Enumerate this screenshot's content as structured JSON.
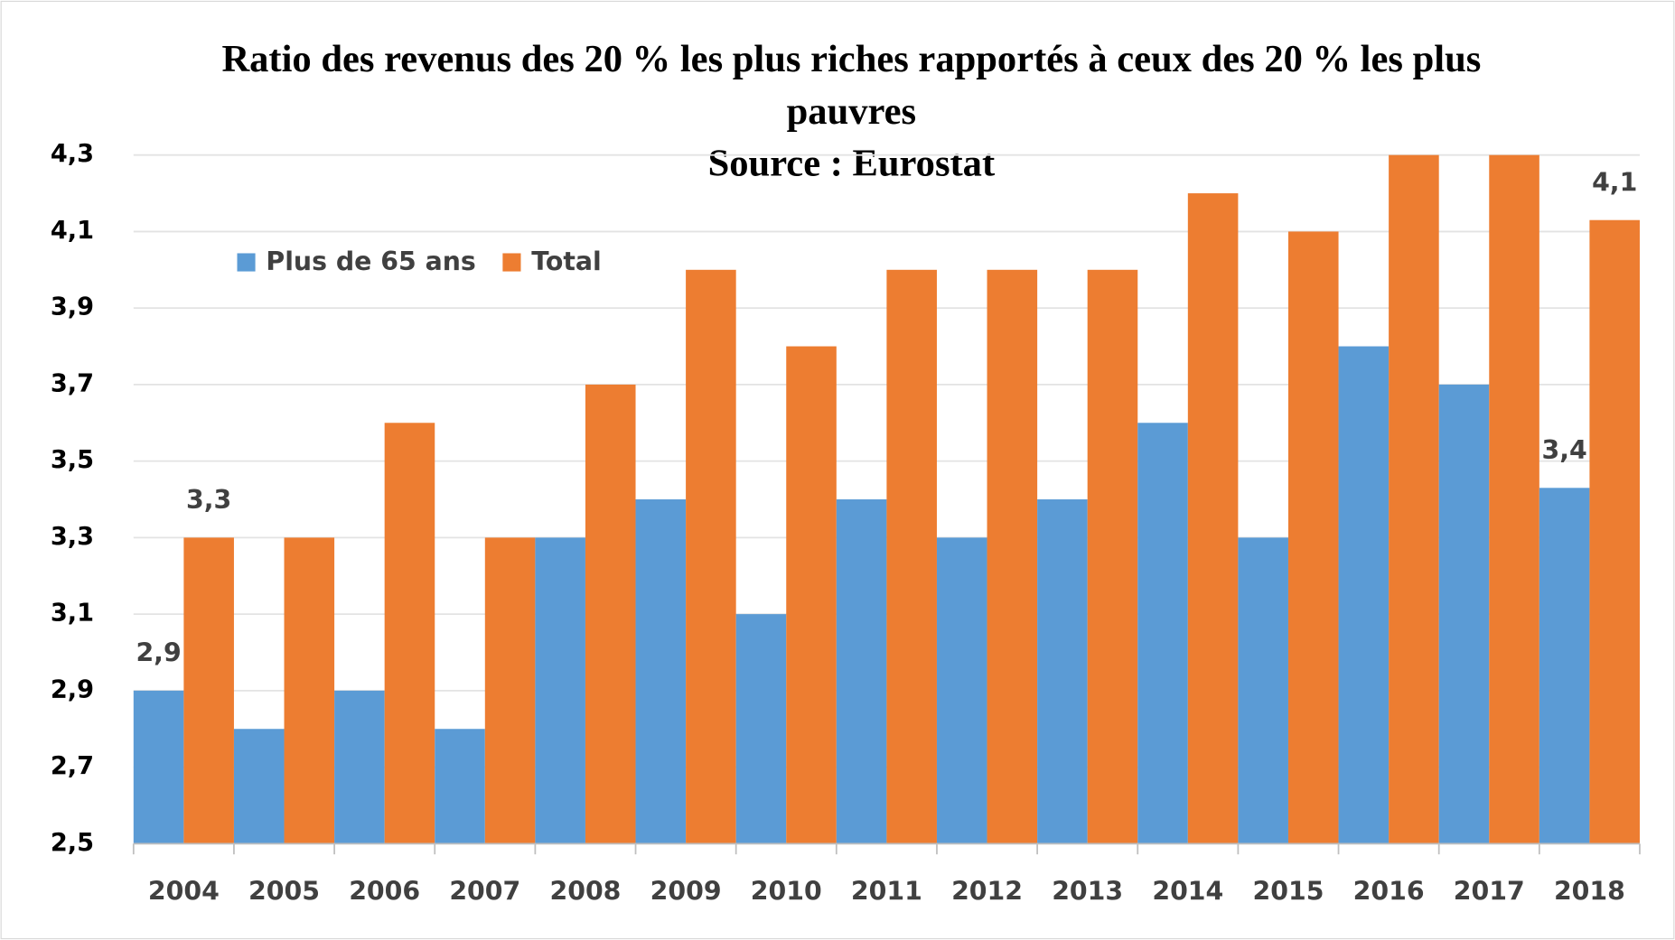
{
  "chart_data": {
    "type": "bar",
    "title": "Ratio des revenus des 20 % les plus riches rapportés à ceux des 20 % les plus pauvres",
    "subtitle": "Source : Eurostat",
    "categories": [
      "2004",
      "2005",
      "2006",
      "2007",
      "2008",
      "2009",
      "2010",
      "2011",
      "2012",
      "2013",
      "2014",
      "2015",
      "2016",
      "2017",
      "2018"
    ],
    "series": [
      {
        "name": "Plus de 65 ans",
        "color": "#5b9bd5",
        "values": [
          2.9,
          2.8,
          2.9,
          2.8,
          3.3,
          3.4,
          3.1,
          3.4,
          3.3,
          3.4,
          3.6,
          3.3,
          3.8,
          3.7,
          3.43
        ],
        "value_labels": [
          "2,9",
          null,
          null,
          null,
          null,
          null,
          null,
          null,
          null,
          null,
          null,
          null,
          null,
          null,
          "3,4"
        ]
      },
      {
        "name": "Total",
        "color": "#ed7d31",
        "values": [
          3.3,
          3.3,
          3.6,
          3.3,
          3.7,
          4.0,
          3.8,
          4.0,
          4.0,
          4.0,
          4.2,
          4.1,
          4.3,
          4.3,
          4.13
        ],
        "value_labels": [
          "3,3",
          null,
          null,
          null,
          null,
          null,
          null,
          null,
          null,
          null,
          null,
          null,
          null,
          null,
          "4,1"
        ]
      }
    ],
    "ylim": [
      2.5,
      4.3
    ],
    "yticks": [
      {
        "value": 2.5,
        "label": "2,5"
      },
      {
        "value": 2.7,
        "label": "2,7"
      },
      {
        "value": 2.9,
        "label": "2,9"
      },
      {
        "value": 3.1,
        "label": "3,1"
      },
      {
        "value": 3.3,
        "label": "3,3"
      },
      {
        "value": 3.5,
        "label": "3,5"
      },
      {
        "value": 3.7,
        "label": "3,7"
      },
      {
        "value": 3.9,
        "label": "3,9"
      },
      {
        "value": 4.1,
        "label": "4,1"
      },
      {
        "value": 4.3,
        "label": "4,3"
      }
    ],
    "grid": true,
    "legend": "top-left"
  }
}
